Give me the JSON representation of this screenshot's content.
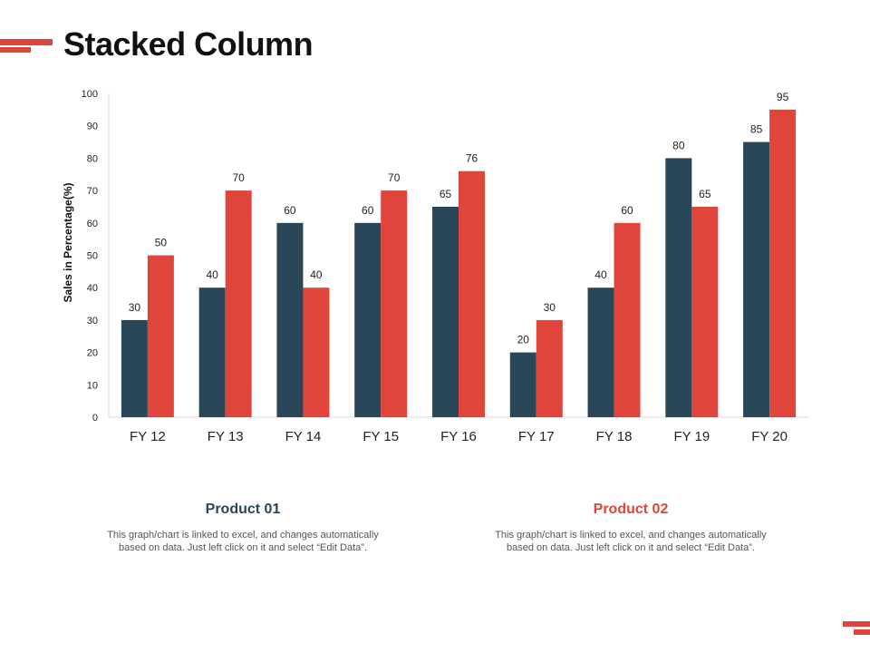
{
  "page": {
    "title": "Stacked Column"
  },
  "colors": {
    "product1": "#2a4659",
    "product2": "#e0453b",
    "accent": "#e0453b"
  },
  "chart_data": {
    "type": "bar",
    "title": "Stacked Column",
    "xlabel": "",
    "ylabel": "Sales in Percentage(%)",
    "ylim": [
      0,
      100
    ],
    "yticks": [
      0,
      10,
      20,
      30,
      40,
      50,
      60,
      70,
      80,
      90,
      100
    ],
    "categories": [
      "FY 12",
      "FY 13",
      "FY 14",
      "FY 15",
      "FY 16",
      "FY 17",
      "FY 18",
      "FY 19",
      "FY 20"
    ],
    "series": [
      {
        "name": "Product 01",
        "values": [
          30,
          40,
          60,
          60,
          65,
          20,
          40,
          80,
          85
        ]
      },
      {
        "name": "Product 02",
        "values": [
          50,
          70,
          40,
          70,
          76,
          30,
          60,
          65,
          95
        ]
      }
    ],
    "grid": false,
    "legend": "bottom"
  },
  "legend": [
    {
      "title": "Product 01",
      "description": "This graph/chart is linked to excel, and changes automatically based on data. Just left click on it and select “Edit Data”."
    },
    {
      "title": "Product 02",
      "description": "This graph/chart is linked to excel, and changes automatically based on data. Just left click on it and select “Edit Data”."
    }
  ]
}
